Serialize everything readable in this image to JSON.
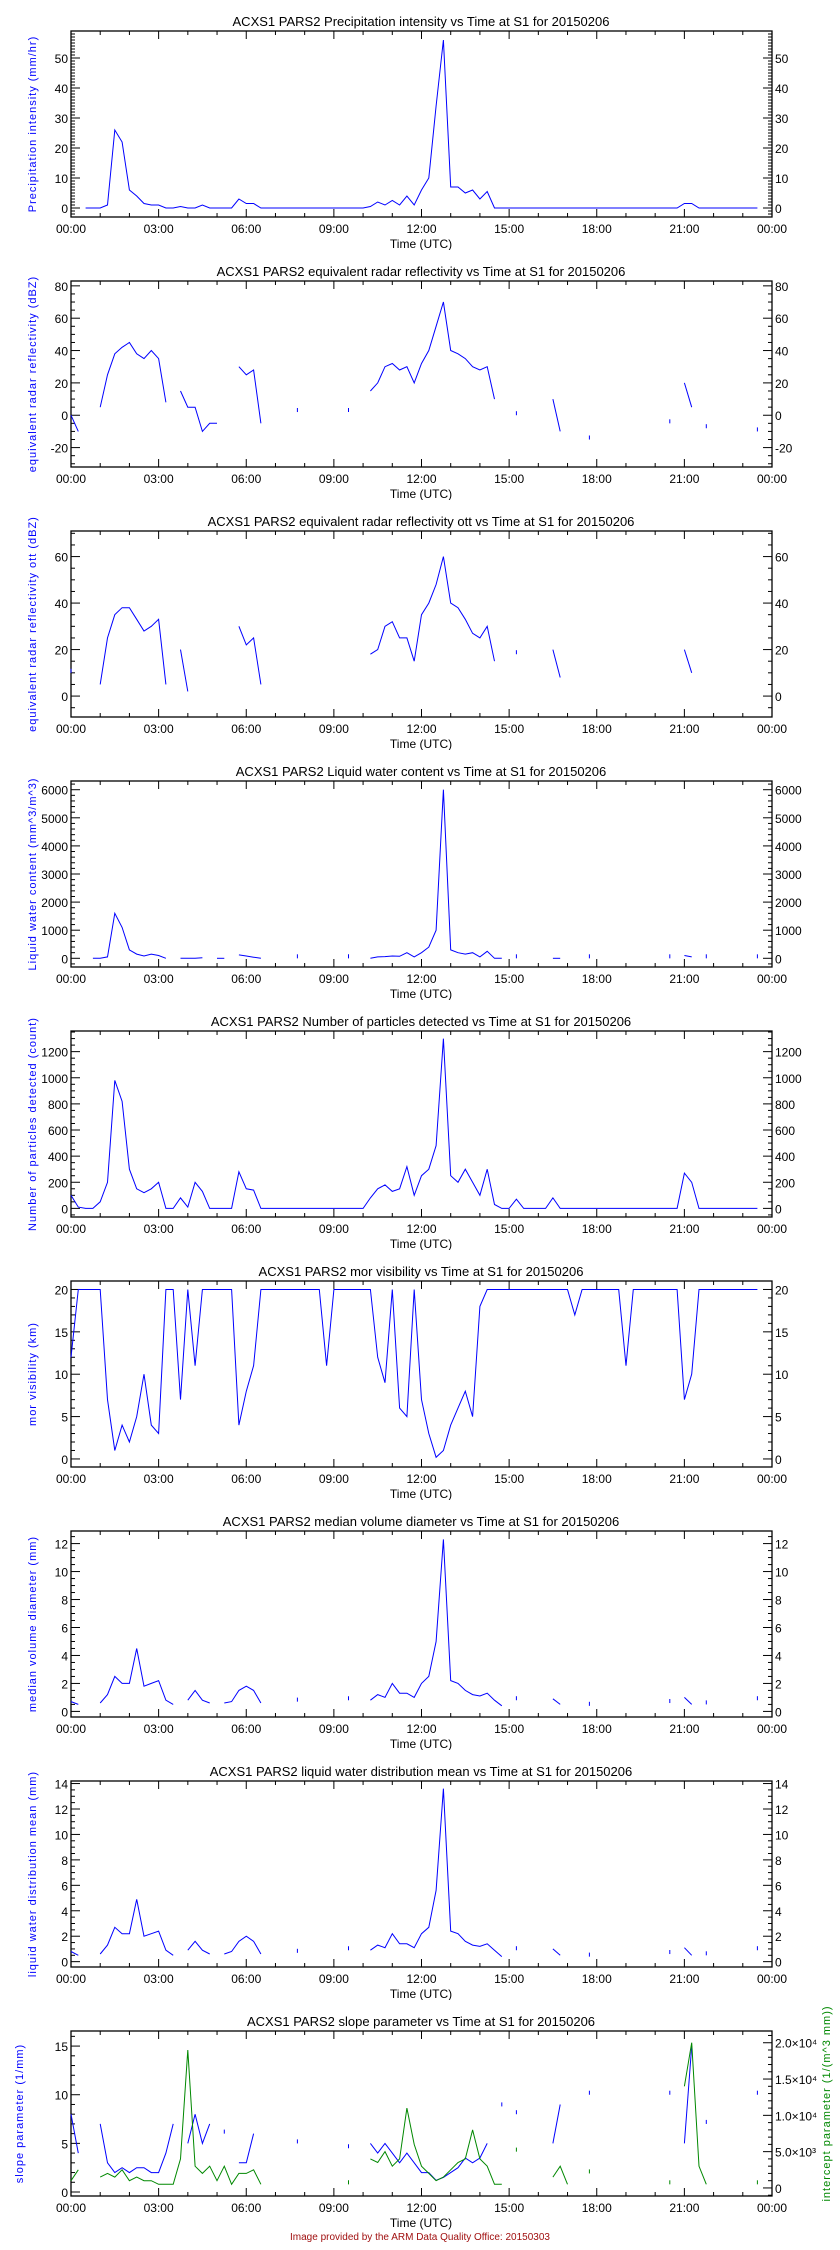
{
  "footer": "Image provided by the ARM Data Quality Office: 20150303",
  "colors": {
    "series": "#0000ff",
    "series2": "#008800",
    "footer": "#a01010",
    "axis": "#000000"
  },
  "chart_data": [
    {
      "type": "line",
      "title": "ACXS1 PARS2 Precipitation intensity vs Time at S1 for 20150206",
      "xlabel": "Time (UTC)",
      "ylabel": "Precipitation intensity (mm/hr)",
      "x_start_hours": 0,
      "x_step_hours": 0.25,
      "xlim": [
        0,
        24
      ],
      "x_tick_labels": [
        "00:00",
        "03:00",
        "06:00",
        "09:00",
        "12:00",
        "15:00",
        "18:00",
        "21:00",
        "00:00"
      ],
      "ylim": [
        -3,
        59
      ],
      "yticks": [
        0,
        10,
        20,
        30,
        40,
        50
      ],
      "yminor": 1,
      "values": [
        null,
        null,
        0,
        0,
        0,
        1,
        26,
        22,
        6,
        4,
        1.5,
        1,
        1,
        0,
        0,
        0.5,
        0,
        0,
        1,
        0,
        0,
        0,
        0,
        3,
        1.5,
        1.5,
        0,
        0,
        0,
        0,
        0,
        0,
        0,
        0,
        0,
        0,
        0,
        0,
        0,
        0,
        0,
        0.5,
        2,
        1,
        2.5,
        1,
        4,
        1,
        6,
        10,
        34,
        56,
        7,
        7,
        5,
        6,
        3,
        5.5,
        0,
        0,
        0,
        0,
        0,
        0,
        0,
        0,
        0,
        0,
        0,
        0,
        0,
        0,
        0,
        0,
        0,
        0,
        0,
        0,
        0,
        0,
        0,
        0,
        0,
        0,
        1.5,
        1.5,
        0,
        0,
        0,
        0,
        0,
        0,
        0,
        0,
        0,
        null
      ]
    },
    {
      "type": "line",
      "title": "ACXS1 PARS2 equivalent radar reflectivity vs Time at S1 for 20150206",
      "xlabel": "Time (UTC)",
      "ylabel": "equivalent radar reflectivity (dBZ)",
      "x_start_hours": 0,
      "x_step_hours": 0.25,
      "xlim": [
        0,
        24
      ],
      "x_tick_labels": [
        "00:00",
        "03:00",
        "06:00",
        "09:00",
        "12:00",
        "15:00",
        "18:00",
        "21:00",
        "00:00"
      ],
      "ylim": [
        -32,
        83
      ],
      "yticks": [
        -20,
        0,
        20,
        40,
        60,
        80
      ],
      "yminor": 5,
      "values": [
        0,
        -10,
        null,
        null,
        5,
        25,
        38,
        42,
        45,
        38,
        35,
        40,
        35,
        8,
        null,
        15,
        5,
        5,
        -10,
        -5,
        -5,
        null,
        null,
        30,
        25,
        28,
        -5,
        null,
        null,
        null,
        null,
        2,
        null,
        null,
        null,
        null,
        null,
        null,
        2,
        null,
        null,
        15,
        20,
        30,
        32,
        28,
        30,
        20,
        32,
        40,
        55,
        70,
        40,
        38,
        35,
        30,
        28,
        30,
        10,
        null,
        null,
        0,
        null,
        null,
        null,
        null,
        10,
        -10,
        null,
        null,
        null,
        -15,
        null,
        null,
        null,
        null,
        null,
        null,
        null,
        null,
        null,
        null,
        -5,
        null,
        20,
        5,
        null,
        -8,
        null,
        null,
        null,
        null,
        null,
        null,
        -10,
        null
      ]
    },
    {
      "type": "line",
      "title": "ACXS1 PARS2 equivalent radar reflectivity ott vs Time at S1 for 20150206",
      "xlabel": "Time (UTC)",
      "ylabel": "equivalent radar reflectivity ott (dBZ)",
      "x_start_hours": 0,
      "x_step_hours": 0.25,
      "xlim": [
        0,
        24
      ],
      "x_tick_labels": [
        "00:00",
        "03:00",
        "06:00",
        "09:00",
        "12:00",
        "15:00",
        "18:00",
        "21:00",
        "00:00"
      ],
      "ylim": [
        -9,
        71
      ],
      "yticks": [
        0,
        20,
        40,
        60
      ],
      "yminor": 5,
      "values": [
        10,
        null,
        null,
        null,
        5,
        25,
        35,
        38,
        38,
        33,
        28,
        30,
        33,
        5,
        null,
        20,
        2,
        null,
        null,
        null,
        null,
        null,
        null,
        30,
        22,
        25,
        5,
        null,
        null,
        null,
        null,
        null,
        null,
        null,
        null,
        null,
        null,
        null,
        null,
        null,
        null,
        18,
        20,
        30,
        32,
        25,
        25,
        15,
        35,
        40,
        48,
        60,
        40,
        38,
        33,
        27,
        25,
        30,
        15,
        null,
        null,
        18,
        null,
        null,
        null,
        null,
        20,
        8,
        null,
        null,
        null,
        null,
        null,
        null,
        null,
        null,
        null,
        null,
        null,
        null,
        null,
        null,
        null,
        null,
        20,
        10,
        null,
        null,
        null,
        null,
        null,
        null,
        null,
        null,
        null,
        null
      ]
    },
    {
      "type": "line",
      "title": "ACXS1 PARS2 Liquid water content vs Time at S1 for 20150206",
      "xlabel": "Time (UTC)",
      "ylabel": "Liquid water content (mm^3/m^3)",
      "x_start_hours": 0,
      "x_step_hours": 0.25,
      "xlim": [
        0,
        24
      ],
      "x_tick_labels": [
        "00:00",
        "03:00",
        "06:00",
        "09:00",
        "12:00",
        "15:00",
        "18:00",
        "21:00",
        "00:00"
      ],
      "ylim": [
        -310,
        6310
      ],
      "yticks": [
        0,
        1000,
        2000,
        3000,
        4000,
        5000,
        6000
      ],
      "yminor": 200,
      "values": [
        null,
        null,
        null,
        0,
        0,
        50,
        1600,
        1100,
        300,
        150,
        80,
        150,
        100,
        0,
        null,
        0,
        0,
        0,
        20,
        null,
        0,
        0,
        null,
        120,
        80,
        40,
        0,
        null,
        null,
        null,
        null,
        0,
        null,
        null,
        null,
        null,
        null,
        null,
        0,
        null,
        null,
        0,
        50,
        60,
        80,
        70,
        200,
        50,
        200,
        400,
        1000,
        6000,
        300,
        200,
        150,
        200,
        50,
        250,
        0,
        0,
        null,
        0,
        null,
        null,
        null,
        null,
        0,
        0,
        null,
        null,
        null,
        0,
        null,
        null,
        null,
        null,
        null,
        null,
        null,
        null,
        null,
        null,
        0,
        null,
        100,
        50,
        null,
        0,
        null,
        null,
        null,
        null,
        null,
        null,
        0,
        null
      ]
    },
    {
      "type": "line",
      "title": "ACXS1 PARS2 Number of particles detected vs Time at S1 for 20150206",
      "xlabel": "Time (UTC)",
      "ylabel": "Number of particles detected (count)",
      "x_start_hours": 0,
      "x_step_hours": 0.25,
      "xlim": [
        0,
        24
      ],
      "x_tick_labels": [
        "00:00",
        "03:00",
        "06:00",
        "09:00",
        "12:00",
        "15:00",
        "18:00",
        "21:00",
        "00:00"
      ],
      "ylim": [
        -66,
        1358
      ],
      "yticks": [
        0,
        200,
        400,
        600,
        800,
        1000,
        1200
      ],
      "yminor": 50,
      "values": [
        100,
        10,
        0,
        0,
        50,
        200,
        980,
        820,
        300,
        150,
        120,
        150,
        200,
        0,
        0,
        80,
        10,
        200,
        130,
        0,
        0,
        0,
        0,
        280,
        150,
        140,
        0,
        0,
        0,
        0,
        0,
        0,
        0,
        0,
        0,
        0,
        0,
        0,
        0,
        0,
        0,
        80,
        150,
        180,
        130,
        150,
        320,
        100,
        250,
        300,
        480,
        1300,
        250,
        200,
        300,
        200,
        100,
        300,
        30,
        0,
        0,
        70,
        0,
        0,
        0,
        0,
        80,
        0,
        0,
        0,
        0,
        0,
        0,
        0,
        0,
        0,
        0,
        0,
        0,
        0,
        0,
        0,
        0,
        0,
        270,
        200,
        0,
        0,
        0,
        0,
        0,
        0,
        0,
        0,
        0,
        null
      ]
    },
    {
      "type": "line",
      "title": "ACXS1 PARS2 mor visibility vs Time at S1 for 20150206",
      "xlabel": "Time (UTC)",
      "ylabel": "mor visibility (km)",
      "x_start_hours": 0,
      "x_step_hours": 0.25,
      "xlim": [
        0,
        24
      ],
      "x_tick_labels": [
        "00:00",
        "03:00",
        "06:00",
        "09:00",
        "12:00",
        "15:00",
        "18:00",
        "21:00",
        "00:00"
      ],
      "ylim": [
        -0.95,
        21
      ],
      "yticks": [
        0,
        5,
        10,
        15,
        20
      ],
      "yminor": 1,
      "values": [
        12,
        20,
        20,
        20,
        20,
        7,
        1,
        4,
        2,
        5,
        10,
        4,
        3,
        20,
        20,
        7,
        20,
        11,
        20,
        20,
        20,
        20,
        20,
        4,
        8,
        11,
        20,
        20,
        20,
        20,
        20,
        20,
        20,
        20,
        20,
        11,
        20,
        20,
        20,
        20,
        20,
        20,
        12,
        9,
        20,
        6,
        5,
        20,
        7,
        3,
        0.2,
        1,
        4,
        6,
        8,
        5,
        18,
        20,
        20,
        20,
        20,
        20,
        20,
        20,
        20,
        20,
        20,
        20,
        20,
        17,
        20,
        20,
        20,
        20,
        20,
        20,
        11,
        20,
        20,
        20,
        20,
        20,
        20,
        20,
        7,
        10,
        20,
        20,
        20,
        20,
        20,
        20,
        20,
        20,
        20,
        null
      ]
    },
    {
      "type": "line",
      "title": "ACXS1 PARS2 median volume diameter vs Time at S1 for 20150206",
      "xlabel": "Time (UTC)",
      "ylabel": "median volume diameter (mm)",
      "x_start_hours": 0,
      "x_step_hours": 0.25,
      "xlim": [
        0,
        24
      ],
      "x_tick_labels": [
        "00:00",
        "03:00",
        "06:00",
        "09:00",
        "12:00",
        "15:00",
        "18:00",
        "21:00",
        "00:00"
      ],
      "ylim": [
        -0.4,
        12.9
      ],
      "yticks": [
        0,
        2,
        4,
        6,
        8,
        10,
        12
      ],
      "yminor": 0.5,
      "values": [
        0.7,
        0.5,
        null,
        null,
        0.6,
        1.2,
        2.5,
        2,
        2,
        4.5,
        1.8,
        2,
        2.2,
        0.8,
        0.5,
        null,
        0.8,
        1.5,
        0.8,
        0.6,
        null,
        0.6,
        0.7,
        1.5,
        1.8,
        1.5,
        0.6,
        null,
        null,
        null,
        null,
        0.7,
        null,
        null,
        null,
        null,
        null,
        null,
        0.8,
        null,
        null,
        0.8,
        1.2,
        1,
        2,
        1.3,
        1.3,
        1,
        2,
        2.5,
        5,
        12.3,
        2.2,
        2,
        1.5,
        1.2,
        1.1,
        1.3,
        0.8,
        0.4,
        null,
        0.8,
        null,
        null,
        null,
        null,
        0.9,
        0.5,
        null,
        null,
        null,
        0.4,
        null,
        null,
        null,
        null,
        null,
        null,
        null,
        null,
        null,
        null,
        0.6,
        null,
        1,
        0.5,
        null,
        0.5,
        null,
        null,
        null,
        null,
        null,
        null,
        0.8,
        null
      ]
    },
    {
      "type": "line",
      "title": "ACXS1 PARS2 liquid water distribution mean vs Time at S1 for 20150206",
      "xlabel": "Time (UTC)",
      "ylabel": "liquid water distribution mean (mm)",
      "x_start_hours": 0,
      "x_step_hours": 0.25,
      "xlim": [
        0,
        24
      ],
      "x_tick_labels": [
        "00:00",
        "03:00",
        "06:00",
        "09:00",
        "12:00",
        "15:00",
        "18:00",
        "21:00",
        "00:00"
      ],
      "ylim": [
        -0.42,
        14.2
      ],
      "yticks": [
        0,
        2,
        4,
        6,
        8,
        10,
        12,
        14
      ],
      "yminor": 0.5,
      "values": [
        0.8,
        0.5,
        null,
        null,
        0.6,
        1.3,
        2.7,
        2.2,
        2.2,
        4.9,
        2,
        2.2,
        2.4,
        0.9,
        0.5,
        null,
        0.9,
        1.6,
        0.9,
        0.6,
        null,
        0.6,
        0.8,
        1.6,
        2,
        1.6,
        0.6,
        null,
        null,
        null,
        null,
        0.7,
        null,
        null,
        null,
        null,
        null,
        null,
        0.9,
        null,
        null,
        0.9,
        1.3,
        1.1,
        2.2,
        1.4,
        1.4,
        1.1,
        2.2,
        2.7,
        5.6,
        13.6,
        2.4,
        2.2,
        1.6,
        1.3,
        1.2,
        1.4,
        0.9,
        0.4,
        null,
        0.9,
        null,
        null,
        null,
        null,
        1,
        0.5,
        null,
        null,
        null,
        0.4,
        null,
        null,
        null,
        null,
        null,
        null,
        null,
        null,
        null,
        null,
        0.6,
        null,
        1.1,
        0.5,
        null,
        0.5,
        null,
        null,
        null,
        null,
        null,
        null,
        0.9,
        null
      ]
    },
    {
      "type": "line",
      "title": "ACXS1 PARS2 slope parameter vs Time at S1 for 20150206",
      "xlabel": "Time (UTC)",
      "ylabel": "slope parameter (1/mm)",
      "x_start_hours": 0,
      "x_step_hours": 0.25,
      "xlim": [
        0,
        24
      ],
      "x_tick_labels": [
        "00:00",
        "03:00",
        "06:00",
        "09:00",
        "12:00",
        "15:00",
        "18:00",
        "21:00",
        "00:00"
      ],
      "ylim": [
        -0.41,
        16.55
      ],
      "yticks": [
        0,
        5,
        10,
        15
      ],
      "yminor": 1,
      "values": [
        8,
        4,
        null,
        null,
        7,
        3,
        2,
        2.5,
        2,
        2.5,
        2.5,
        2,
        2,
        4,
        7,
        null,
        5,
        8,
        5,
        7,
        null,
        6,
        null,
        3,
        3,
        6,
        null,
        null,
        null,
        null,
        null,
        5,
        null,
        null,
        null,
        null,
        null,
        null,
        4.5,
        null,
        null,
        5,
        4,
        5,
        4,
        3,
        4,
        3,
        2,
        2,
        1.2,
        1.5,
        2,
        2.5,
        3.5,
        3,
        3.5,
        5,
        null,
        8.8,
        null,
        8,
        null,
        null,
        null,
        null,
        5,
        9,
        null,
        null,
        null,
        10,
        null,
        null,
        null,
        null,
        null,
        null,
        null,
        null,
        null,
        null,
        10,
        null,
        5,
        15,
        null,
        7,
        null,
        null,
        null,
        null,
        null,
        null,
        10,
        null
      ],
      "y2label": "intercept parameter (1/(m^3 mm))",
      "y2lim": [
        -1109,
        21617
      ],
      "y2ticks": [
        0,
        5000,
        10000,
        15000,
        20000
      ],
      "y2tick_labels": [
        "0",
        "5.0×10³",
        "1.0×10⁴",
        "1.5×10⁴",
        "2.0×10⁴"
      ],
      "y2minor": 1000,
      "values2": [
        1000,
        2500,
        null,
        null,
        1500,
        2000,
        1500,
        2500,
        1000,
        1500,
        1000,
        1000,
        500,
        500,
        500,
        4000,
        19000,
        3000,
        2000,
        3000,
        1000,
        3000,
        500,
        2000,
        2000,
        2500,
        500,
        null,
        null,
        null,
        null,
        null,
        null,
        null,
        null,
        null,
        null,
        null,
        500,
        null,
        null,
        4000,
        3500,
        5000,
        3000,
        4000,
        11000,
        6000,
        3000,
        2000,
        1000,
        1500,
        2500,
        3500,
        4000,
        8000,
        4000,
        3000,
        500,
        500,
        null,
        5000,
        null,
        null,
        null,
        null,
        1500,
        3000,
        500,
        null,
        null,
        2000,
        null,
        null,
        null,
        null,
        null,
        null,
        null,
        null,
        null,
        null,
        500,
        null,
        14000,
        20000,
        3000,
        500,
        null,
        null,
        null,
        null,
        null,
        null,
        500,
        null
      ]
    }
  ]
}
